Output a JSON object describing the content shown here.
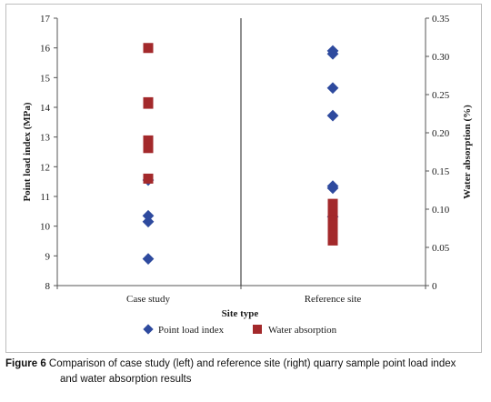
{
  "chart_data": {
    "type": "scatter",
    "categories": [
      "Case study",
      "Reference site"
    ],
    "xlabel": "Site type",
    "ylabel_left": "Point load index (MPa)",
    "ylabel_right": "Water absorption (%)",
    "ylim_left": [
      8,
      17
    ],
    "yticks_left": [
      8,
      9,
      10,
      11,
      12,
      13,
      14,
      15,
      16,
      17
    ],
    "ylim_right": [
      0,
      0.35
    ],
    "yticks_right": [
      "0",
      "0.05",
      "0.10",
      "0.15",
      "0.20",
      "0.25",
      "0.30",
      "0.35"
    ],
    "grid": false,
    "legend_position": "bottom",
    "series": [
      {
        "name": "Point load index",
        "axis": "left",
        "marker": "diamond",
        "color": "#2e4a9e",
        "points": [
          {
            "category": "Case study",
            "y": 11.55
          },
          {
            "category": "Case study",
            "y": 10.35
          },
          {
            "category": "Case study",
            "y": 10.15
          },
          {
            "category": "Case study",
            "y": 8.9
          },
          {
            "category": "Reference site",
            "y": 15.9
          },
          {
            "category": "Reference site",
            "y": 15.8
          },
          {
            "category": "Reference site",
            "y": 14.65
          },
          {
            "category": "Reference site",
            "y": 13.72
          },
          {
            "category": "Reference site",
            "y": 11.35
          },
          {
            "category": "Reference site",
            "y": 11.28
          },
          {
            "category": "Reference site",
            "y": 10.32
          }
        ]
      },
      {
        "name": "Water absorption",
        "axis": "right",
        "marker": "square",
        "color": "#a3292b",
        "points": [
          {
            "category": "Case study",
            "y": 0.311
          },
          {
            "category": "Case study",
            "y": 0.24
          },
          {
            "category": "Case study",
            "y": 0.238
          },
          {
            "category": "Case study",
            "y": 0.19
          },
          {
            "category": "Case study",
            "y": 0.185
          },
          {
            "category": "Case study",
            "y": 0.18
          },
          {
            "category": "Case study",
            "y": 0.14
          },
          {
            "category": "Reference site",
            "y": 0.107
          },
          {
            "category": "Reference site",
            "y": 0.1
          },
          {
            "category": "Reference site",
            "y": 0.093
          },
          {
            "category": "Reference site",
            "y": 0.086
          },
          {
            "category": "Reference site",
            "y": 0.079
          },
          {
            "category": "Reference site",
            "y": 0.072
          },
          {
            "category": "Reference site",
            "y": 0.065
          },
          {
            "category": "Reference site",
            "y": 0.059
          }
        ]
      }
    ]
  },
  "caption": {
    "label": "Figure 6",
    "text_line1": " Comparison of case study (left) and reference site (right) quarry sample point load index",
    "text_line2": "and water absorption results"
  }
}
